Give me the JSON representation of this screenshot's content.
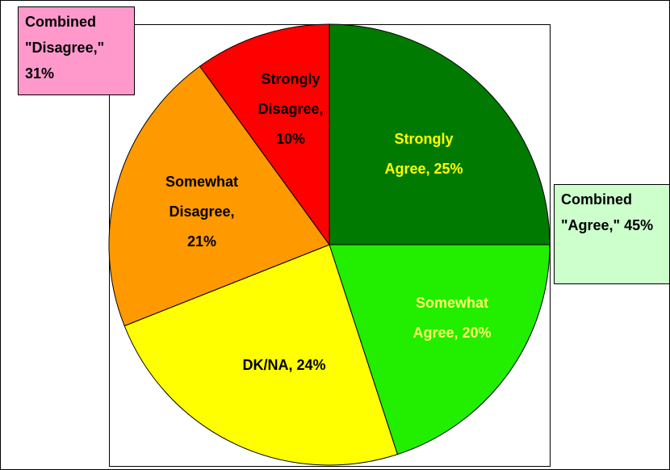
{
  "chart_data": {
    "type": "pie",
    "categories": [
      "Strongly Agree",
      "Somewhat Agree",
      "DK/NA",
      "Somewhat Disagree",
      "Strongly Disagree"
    ],
    "values": [
      25,
      20,
      24,
      21,
      10
    ],
    "value_labels": [
      "Strongly Agree, 25%",
      "Somewhat Agree, 20%",
      "DK/NA, 24%",
      "Somewhat Disagree, 21%",
      "Strongly Disagree, 10%"
    ],
    "colors": [
      "#007a00",
      "#22ee00",
      "#ffff00",
      "#ff9900",
      "#ff0000"
    ],
    "label_colors": [
      "#ffff00",
      "#ffff66",
      "#000000",
      "#000000",
      "#000000"
    ],
    "annotations": [
      {
        "text": "Combined \"Disagree,\" 31%",
        "color": "#ff99cc"
      },
      {
        "text": "Combined \"Agree,\" 45%",
        "color": "#ccffcc"
      }
    ]
  }
}
